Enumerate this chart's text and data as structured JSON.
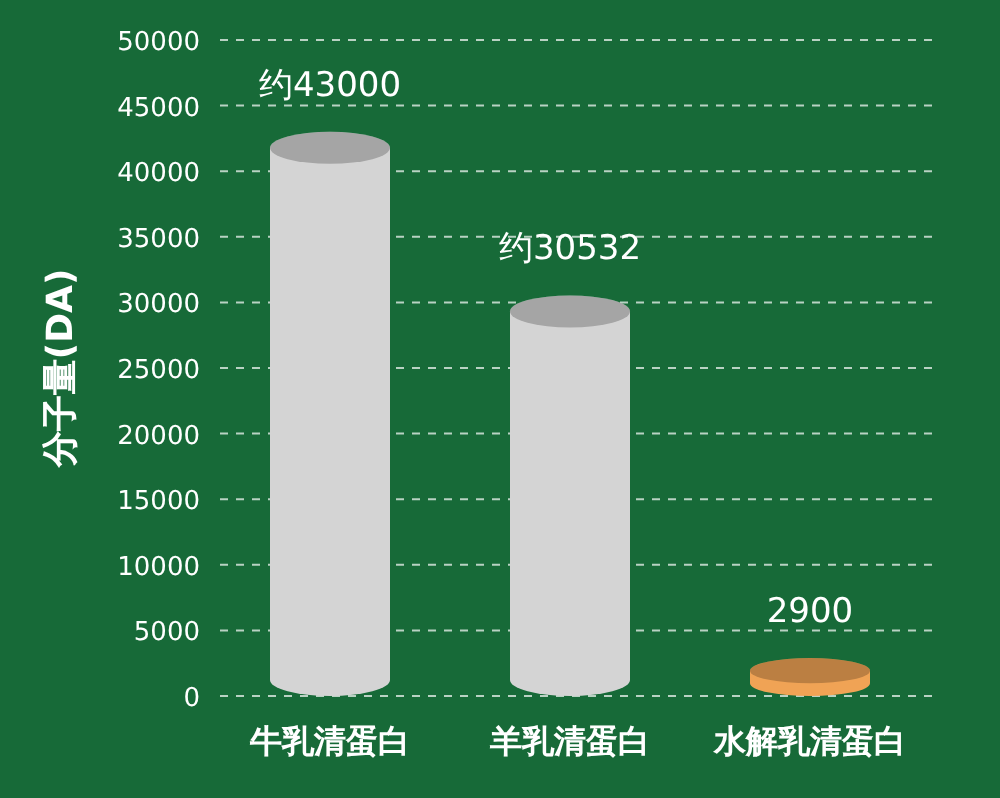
{
  "chart_data": {
    "type": "bar",
    "ylabel": "分子量(DA)",
    "categories": [
      "牛乳清蛋白",
      "羊乳清蛋白",
      "水解乳清蛋白"
    ],
    "values": [
      43000,
      30532,
      2900
    ],
    "colors": [
      "#d4d4d4",
      "#d4d4d4",
      "#f0a355"
    ],
    "value_labels": [
      "约43000",
      "约30532",
      "2900"
    ],
    "ylim": [
      0,
      50000
    ],
    "yticks": [
      0,
      5000,
      10000,
      15000,
      20000,
      25000,
      30000,
      35000,
      40000,
      45000,
      50000
    ],
    "grid": "y"
  }
}
